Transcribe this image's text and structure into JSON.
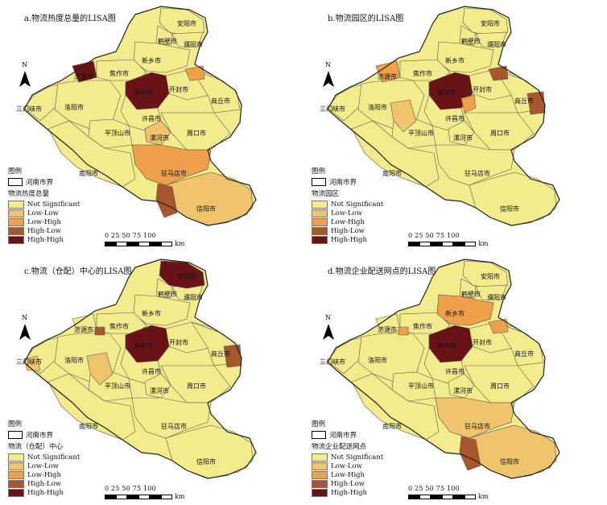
{
  "colors": {
    "not_significant": "#f2ec8d",
    "low_low": "#efc46d",
    "low_high": "#eea04a",
    "high_low": "#a8562e",
    "high_high": "#6a1316",
    "border": "#5a5a50"
  },
  "common": {
    "north_label": "N",
    "legend_title": "图例",
    "border_label": "河南市界",
    "categories": [
      "Not Significant",
      "Low-Low",
      "Low-High",
      "High-Low",
      "High-High"
    ],
    "scale_numbers": "0   25  50   75 100",
    "scale_unit": "km"
  },
  "city_names": {
    "anyang": "安阳市",
    "hebi": "鹤壁市",
    "puyang": "濮阳市",
    "xinxiang": "新乡市",
    "jiyuan": "济源市",
    "jiaozuo": "焦作市",
    "zhengzhou": "郑州市",
    "kaifeng": "开封市",
    "shangqiu": "商丘市",
    "sanmenxia": "三门峡市",
    "luoyang": "洛阳市",
    "xuchang": "许昌市",
    "pingdingshan": "平顶山市",
    "luohe": "漯河市",
    "zhoukou": "周口市",
    "nanyang": "南阳市",
    "zhumadian": "驻马店市",
    "xinyang": "信阳市"
  },
  "panels": [
    {
      "title": "a.物流热度总量的LISA图",
      "legend_sub": "物流热度总量",
      "regions": {
        "zhengzhou": "high_high",
        "jiyuan": "high_high",
        "kaifeng_w": "low_high",
        "zhumadian": "low_high",
        "xinyang": "low_low",
        "xinyang_w": "high_low",
        "luohe": "low_low"
      }
    },
    {
      "title": "b.物流园区的LISA图",
      "legend_sub": "物流园区",
      "regions": {
        "zhengzhou": "high_high",
        "kaifeng_w": "high_low",
        "shangqiu_e": "high_low",
        "luoyang_e": "low_low",
        "xuchang_n": "low_high",
        "jiyuan": "low_high"
      }
    },
    {
      "title": "c.物流（仓配）中心的LISA图",
      "legend_sub": "物流（仓配）中心",
      "regions": {
        "zhengzhou": "high_high",
        "anyang": "high_high",
        "shangqiu_e": "high_low",
        "jiaozuo_s": "high_low",
        "sanmenxia_n": "low_low",
        "luoyang_e": "low_low"
      }
    },
    {
      "title": "d.物流企业配送网点的LISA图",
      "legend_sub": "物流企业配送网点",
      "regions": {
        "zhengzhou": "high_high",
        "xinxiang": "low_high",
        "kaifeng_w": "low_high",
        "jiaozuo_s": "low_high",
        "zhumadian": "low_low",
        "xinyang": "low_low",
        "xinyang_w": "high_low"
      }
    }
  ]
}
